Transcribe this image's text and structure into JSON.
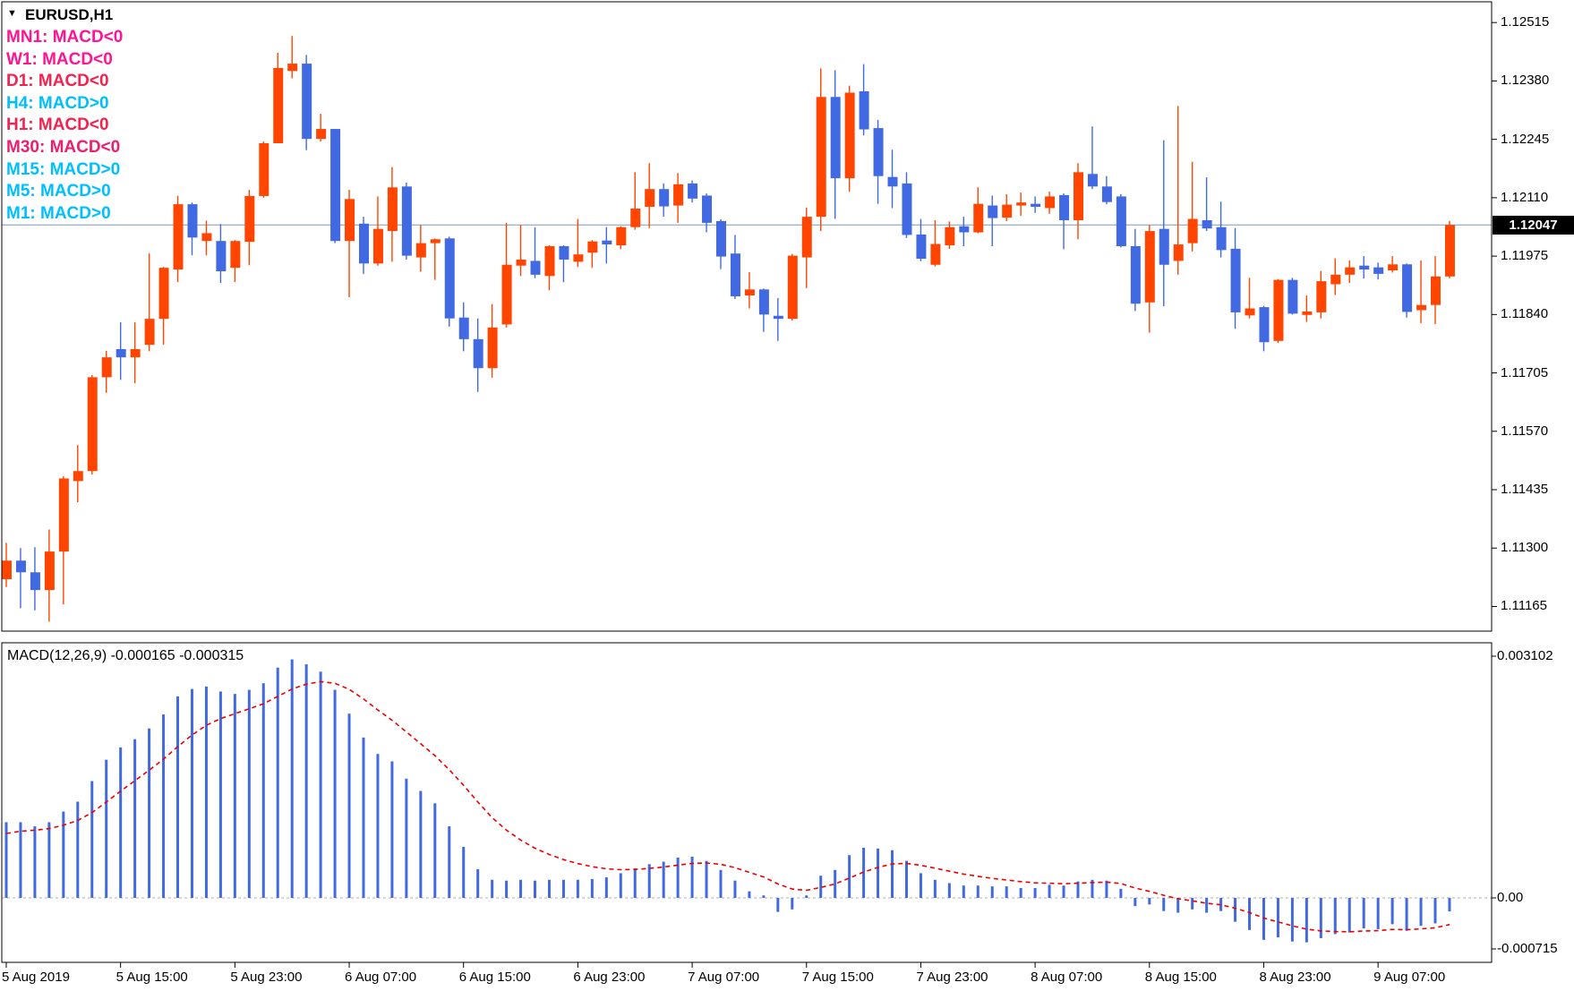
{
  "header": {
    "symbol": "EURUSD,H1",
    "dropdown_arrow": "triangle-down-icon"
  },
  "legend": {
    "rows": [
      {
        "label": "MN1: MACD<0",
        "color": "#FF1493"
      },
      {
        "label": "W1: MACD<0",
        "color": "#FF1493"
      },
      {
        "label": "D1: MACD<0",
        "color": "#F2234E"
      },
      {
        "label": "H4: MACD>0",
        "color": "#00BFFF"
      },
      {
        "label": "H1: MACD<0",
        "color": "#F2234E"
      },
      {
        "label": "M30: MACD<0",
        "color": "#ED1E6E"
      },
      {
        "label": "M15: MACD>0",
        "color": "#00BFFF"
      },
      {
        "label": "M5: MACD>0",
        "color": "#00BFFF"
      },
      {
        "label": "M1: MACD>0",
        "color": "#00BFFF"
      }
    ]
  },
  "price_axis": {
    "labels": [
      "1.12515",
      "1.12380",
      "1.12245",
      "1.12110",
      "1.11975",
      "1.11840",
      "1.11705",
      "1.11570",
      "1.11435",
      "1.11300",
      "1.11165"
    ],
    "values": [
      1.12515,
      1.1238,
      1.12245,
      1.1211,
      1.11975,
      1.1184,
      1.11705,
      1.1157,
      1.11435,
      1.113,
      1.11165
    ],
    "current_price": "1.12047",
    "current_price_value": 1.12047,
    "badge_bg": "#000000",
    "badge_text_color": "#ffffff",
    "current_price_line_color": "#7E99B0"
  },
  "time_axis": {
    "labels": [
      {
        "text": "5 Aug 2019",
        "bar": 0
      },
      {
        "text": "5 Aug 15:00",
        "bar": 8
      },
      {
        "text": "5 Aug 23:00",
        "bar": 16
      },
      {
        "text": "6 Aug 07:00",
        "bar": 24
      },
      {
        "text": "6 Aug 15:00",
        "bar": 32
      },
      {
        "text": "6 Aug 23:00",
        "bar": 40
      },
      {
        "text": "7 Aug 07:00",
        "bar": 48
      },
      {
        "text": "7 Aug 15:00",
        "bar": 56
      },
      {
        "text": "7 Aug 23:00",
        "bar": 64
      },
      {
        "text": "8 Aug 07:00",
        "bar": 72
      },
      {
        "text": "8 Aug 15:00",
        "bar": 80
      },
      {
        "text": "8 Aug 23:00",
        "bar": 88
      },
      {
        "text": "9 Aug 07:00",
        "bar": 96
      }
    ]
  },
  "macd_panel": {
    "label": "MACD(12,26,9) -0.000165 -0.000315",
    "macd_current": -0.000165,
    "signal_current": -0.000315,
    "scale_max_label": "0.003102",
    "zero_label": "0.00",
    "scale_min_label": "-0.000715",
    "bar_color": "#4169E1",
    "signal_color": "#EE0000",
    "zero_line_color": "#B0B0B0"
  },
  "chart_data": [
    {
      "type": "candlestick",
      "title": "EURUSD,H1",
      "x_start": "2019-08-05 07:00",
      "interval_hours": 1,
      "bull_color": "#FF4500",
      "bear_color": "#4169E1",
      "ylim": [
        1.11108,
        1.12563
      ],
      "grid": false,
      "ohlc": [
        [
          1.11228,
          1.11312,
          1.1121,
          1.11271
        ],
        [
          1.11271,
          1.113,
          1.11161,
          1.11244
        ],
        [
          1.11244,
          1.11302,
          1.11156,
          1.11203
        ],
        [
          1.11203,
          1.11343,
          1.1113,
          1.11292
        ],
        [
          1.11292,
          1.11466,
          1.1117,
          1.11461
        ],
        [
          1.11455,
          1.11538,
          1.11406,
          1.11478
        ],
        [
          1.11478,
          1.117,
          1.1147,
          1.11695
        ],
        [
          1.11695,
          1.11756,
          1.11659,
          1.11741
        ],
        [
          1.1176,
          1.11822,
          1.11689,
          1.11741
        ],
        [
          1.11741,
          1.11822,
          1.11681,
          1.1176
        ],
        [
          1.1177,
          1.11981,
          1.11755,
          1.1183
        ],
        [
          1.1183,
          1.1195,
          1.1177,
          1.11948
        ],
        [
          1.11944,
          1.12114,
          1.11915,
          1.12095
        ],
        [
          1.12095,
          1.12099,
          1.11977,
          1.12018
        ],
        [
          1.1201,
          1.12057,
          1.11977,
          1.12028
        ],
        [
          1.1201,
          1.12049,
          1.11913,
          1.1194
        ],
        [
          1.11948,
          1.12012,
          1.11915,
          1.1201
        ],
        [
          1.12008,
          1.12128,
          1.11954,
          1.12114
        ],
        [
          1.12114,
          1.1224,
          1.1211,
          1.12236
        ],
        [
          1.12236,
          1.12445,
          1.12236,
          1.1241
        ],
        [
          1.12403,
          1.12484,
          1.12386,
          1.1242
        ],
        [
          1.1242,
          1.1244,
          1.1222,
          1.12246
        ],
        [
          1.12246,
          1.12304,
          1.1224,
          1.12269
        ],
        [
          1.12269,
          1.12269,
          1.12005,
          1.1201
        ],
        [
          1.1201,
          1.12128,
          1.1188,
          1.12107
        ],
        [
          1.1205,
          1.12066,
          1.11934,
          1.11958
        ],
        [
          1.11958,
          1.12113,
          1.11953,
          1.12038
        ],
        [
          1.12033,
          1.12181,
          1.11962,
          1.12134
        ],
        [
          1.12136,
          1.12145,
          1.11967,
          1.11976
        ],
        [
          1.11972,
          1.12047,
          1.11939,
          1.12005
        ],
        [
          1.12005,
          1.12016,
          1.1192,
          1.12014
        ],
        [
          1.12016,
          1.1202,
          1.11812,
          1.11831
        ],
        [
          1.11833,
          1.11868,
          1.11755,
          1.11783
        ],
        [
          1.11783,
          1.11831,
          1.11661,
          1.11716
        ],
        [
          1.11716,
          1.11864,
          1.11694,
          1.1181
        ],
        [
          1.11817,
          1.12052,
          1.1181,
          1.11955
        ],
        [
          1.11953,
          1.12047,
          1.11929,
          1.11967
        ],
        [
          1.11964,
          1.12042,
          1.11924,
          1.11932
        ],
        [
          1.11929,
          1.12,
          1.11896,
          1.11998
        ],
        [
          1.11998,
          1.12,
          1.11915,
          1.11967
        ],
        [
          1.11962,
          1.12061,
          1.1195,
          1.11979
        ],
        [
          1.11983,
          1.12012,
          1.11948,
          1.12009
        ],
        [
          1.12011,
          1.12042,
          1.11958,
          1.12002
        ],
        [
          1.12,
          1.12044,
          1.11991,
          1.12042
        ],
        [
          1.12042,
          1.12169,
          1.12036,
          1.12085
        ],
        [
          1.12089,
          1.1219,
          1.1204,
          1.1213
        ],
        [
          1.1213,
          1.12143,
          1.12066,
          1.1209
        ],
        [
          1.12092,
          1.12167,
          1.12052,
          1.12141
        ],
        [
          1.12143,
          1.1215,
          1.12099,
          1.12108
        ],
        [
          1.12115,
          1.1212,
          1.1203,
          1.12052
        ],
        [
          1.12056,
          1.1206,
          1.11945,
          1.11974
        ],
        [
          1.11981,
          1.12024,
          1.11876,
          1.11882
        ],
        [
          1.11884,
          1.11938,
          1.11854,
          1.11898
        ],
        [
          1.11898,
          1.119,
          1.118,
          1.1184
        ],
        [
          1.11837,
          1.11878,
          1.11779,
          1.1183
        ],
        [
          1.1183,
          1.1198,
          1.11826,
          1.11976
        ],
        [
          1.11972,
          1.12087,
          1.11901,
          1.12066
        ],
        [
          1.12066,
          1.12409,
          1.12033,
          1.12343
        ],
        [
          1.12343,
          1.12405,
          1.12061,
          1.12155
        ],
        [
          1.12155,
          1.12369,
          1.12124,
          1.12353
        ],
        [
          1.12356,
          1.12419,
          1.12254,
          1.12268
        ],
        [
          1.12271,
          1.1229,
          1.12096,
          1.1216
        ],
        [
          1.12158,
          1.12221,
          1.12086,
          1.12136
        ],
        [
          1.12143,
          1.12169,
          1.12017,
          1.12024
        ],
        [
          1.12025,
          1.12061,
          1.11963,
          1.11969
        ],
        [
          1.11955,
          1.12058,
          1.11951,
          1.12003
        ],
        [
          1.12,
          1.12055,
          1.11992,
          1.12042
        ],
        [
          1.12044,
          1.12066,
          1.11998,
          1.1203
        ],
        [
          1.1203,
          1.12134,
          1.12028,
          1.12096
        ],
        [
          1.12092,
          1.12115,
          1.11998,
          1.12063
        ],
        [
          1.12064,
          1.12118,
          1.12056,
          1.12094
        ],
        [
          1.12092,
          1.12122,
          1.12068,
          1.12099
        ],
        [
          1.12096,
          1.12113,
          1.12075,
          1.12089
        ],
        [
          1.12086,
          1.12124,
          1.12073,
          1.12113
        ],
        [
          1.12116,
          1.1212,
          1.11991,
          1.12058
        ],
        [
          1.12058,
          1.1219,
          1.12014,
          1.12169
        ],
        [
          1.12165,
          1.12275,
          1.1213,
          1.12136
        ],
        [
          1.12136,
          1.1216,
          1.12095,
          1.121
        ],
        [
          1.12113,
          1.12118,
          1.11995,
          1.11998
        ],
        [
          1.11998,
          1.12038,
          1.11848,
          1.11865
        ],
        [
          1.11868,
          1.12047,
          1.11798,
          1.12033
        ],
        [
          1.12038,
          1.12243,
          1.11859,
          1.11955
        ],
        [
          1.11964,
          1.12322,
          1.11932,
          1.12002
        ],
        [
          1.12005,
          1.12193,
          1.11986,
          1.12061
        ],
        [
          1.12058,
          1.12157,
          1.12033,
          1.12039
        ],
        [
          1.12042,
          1.12101,
          1.11972,
          1.11989
        ],
        [
          1.11992,
          1.1204,
          1.11807,
          1.11845
        ],
        [
          1.11838,
          1.11925,
          1.11831,
          1.11854
        ],
        [
          1.11857,
          1.1186,
          1.11755,
          1.11776
        ],
        [
          1.11779,
          1.11922,
          1.11774,
          1.1192
        ],
        [
          1.1192,
          1.11925,
          1.1184,
          1.11842
        ],
        [
          1.11839,
          1.11884,
          1.11823,
          1.11847
        ],
        [
          1.11845,
          1.11941,
          1.11831,
          1.11917
        ],
        [
          1.1191,
          1.1197,
          1.11885,
          1.11932
        ],
        [
          1.11932,
          1.11965,
          1.11913,
          1.11949
        ],
        [
          1.11953,
          1.11975,
          1.11923,
          1.11944
        ],
        [
          1.11949,
          1.1196,
          1.11921,
          1.11934
        ],
        [
          1.11942,
          1.11975,
          1.11937,
          1.11956
        ],
        [
          1.11956,
          1.11958,
          1.11833,
          1.11846
        ],
        [
          1.1185,
          1.11965,
          1.1182,
          1.11862
        ],
        [
          1.11862,
          1.11975,
          1.11818,
          1.11928
        ],
        [
          1.11928,
          1.12056,
          1.11924,
          1.12047
        ]
      ]
    },
    {
      "type": "bar",
      "title": "MACD(12,26,9) histogram with EMA9 signal line",
      "ylim": [
        -0.000715,
        0.003102
      ],
      "signal_ema_period": 9,
      "values": [
        0.00092,
        0.00092,
        0.00087,
        0.00092,
        0.00105,
        0.00117,
        0.00142,
        0.00168,
        0.00183,
        0.00193,
        0.00206,
        0.00223,
        0.00245,
        0.00254,
        0.00257,
        0.00251,
        0.00248,
        0.00253,
        0.00261,
        0.0028,
        0.0029,
        0.00284,
        0.00275,
        0.00253,
        0.00224,
        0.00195,
        0.00175,
        0.00166,
        0.00145,
        0.0013,
        0.00115,
        0.00087,
        0.00062,
        0.00035,
        0.00022,
        0.00021,
        0.00022,
        0.00021,
        0.00022,
        0.00022,
        0.00022,
        0.00023,
        0.00025,
        0.0003,
        0.00036,
        0.00041,
        0.00044,
        0.00049,
        0.0005,
        0.00045,
        0.00034,
        0.00021,
        8e-05,
        3e-05,
        -0.00017,
        -0.00014,
        3e-05,
        0.00027,
        0.00034,
        0.00052,
        0.00061,
        0.0006,
        0.00058,
        0.00045,
        0.0003,
        0.00022,
        0.00018,
        0.00015,
        0.00015,
        0.00014,
        0.00014,
        0.00012,
        0.00012,
        0.00016,
        0.00015,
        0.0002,
        0.00022,
        0.00021,
        0.00011,
        -0.0001,
        -8e-05,
        -0.00016,
        -0.00018,
        -0.00014,
        -0.00018,
        -0.00016,
        -0.00029,
        -0.00039,
        -0.00051,
        -0.00048,
        -0.00053,
        -0.00054,
        -0.00049,
        -0.00044,
        -0.00042,
        -0.00037,
        -0.00038,
        -0.00032,
        -0.0004,
        -0.00034,
        -0.00031,
        -0.000165
      ]
    }
  ]
}
